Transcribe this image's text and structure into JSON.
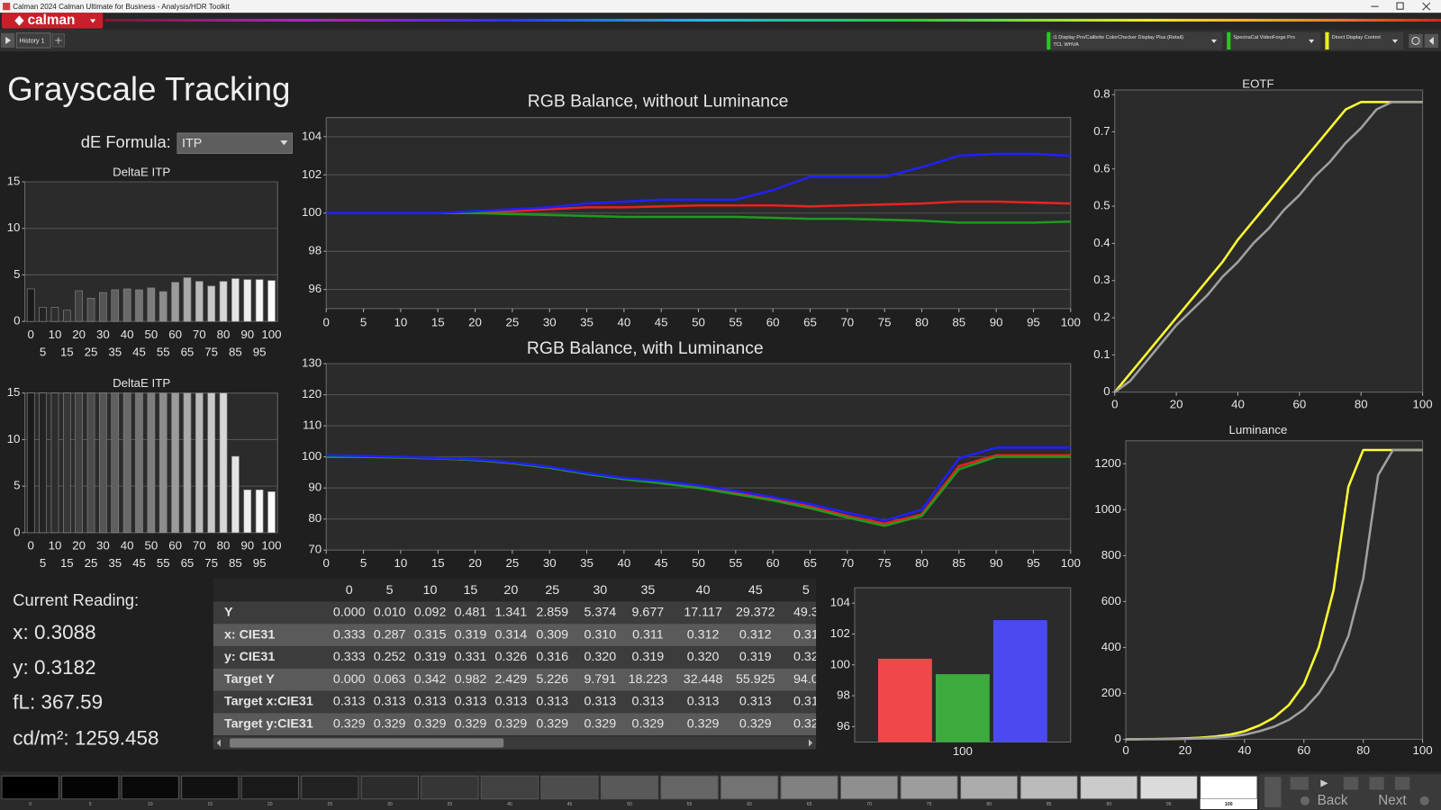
{
  "window_title": "Calman 2024 Calman Ultimate for Business - Analysis/HDR Toolkit",
  "logo": "calman",
  "tab": "History 1",
  "devices": [
    {
      "name": "i1 Display Pro/Calibrite ColorChecker Display Plus (Retail)",
      "detail": "TCL WHVA"
    },
    {
      "name": "SpectraCal VideoForge Pro"
    },
    {
      "name": "Direct Display Control"
    }
  ],
  "page_title": "Grayscale Tracking",
  "de_formula": {
    "label": "dE Formula:",
    "value": "ITP"
  },
  "current_reading": {
    "title": "Current Reading:",
    "lines": [
      "x: 0.3088",
      "y: 0.3182",
      "fL: 367.59",
      "cd/m²: 1259.458"
    ]
  },
  "table": {
    "header": [
      "0",
      "5",
      "10",
      "15",
      "20",
      "25",
      "30",
      "35",
      "40",
      "45",
      "5"
    ],
    "rows": [
      [
        "Y",
        "0.000",
        "0.010",
        "0.092",
        "0.481",
        "1.341",
        "2.859",
        "5.374",
        "9.677",
        "17.117",
        "29.372",
        "49.3"
      ],
      [
        "x: CIE31",
        "0.333",
        "0.287",
        "0.315",
        "0.319",
        "0.314",
        "0.309",
        "0.310",
        "0.311",
        "0.312",
        "0.312",
        "0.31"
      ],
      [
        "y: CIE31",
        "0.333",
        "0.252",
        "0.319",
        "0.331",
        "0.326",
        "0.316",
        "0.320",
        "0.319",
        "0.320",
        "0.319",
        "0.32"
      ],
      [
        "Target Y",
        "0.000",
        "0.063",
        "0.342",
        "0.982",
        "2.429",
        "5.226",
        "9.791",
        "18.223",
        "32.448",
        "55.925",
        "94.0"
      ],
      [
        "Target x:CIE31",
        "0.313",
        "0.313",
        "0.313",
        "0.313",
        "0.313",
        "0.313",
        "0.313",
        "0.313",
        "0.313",
        "0.313",
        "0.31"
      ],
      [
        "Target y:CIE31",
        "0.329",
        "0.329",
        "0.329",
        "0.329",
        "0.329",
        "0.329",
        "0.329",
        "0.329",
        "0.329",
        "0.329",
        "0.32"
      ]
    ]
  },
  "swatches": [
    "0",
    "5",
    "10",
    "15",
    "20",
    "25",
    "30",
    "35",
    "40",
    "45",
    "50",
    "55",
    "60",
    "65",
    "70",
    "75",
    "80",
    "85",
    "90",
    "95",
    "100"
  ],
  "nav": {
    "back": "Back",
    "next": "Next"
  },
  "chart_data": [
    {
      "type": "bar",
      "title": "DeltaE ITP",
      "categories": [
        "0",
        "5",
        "10",
        "15",
        "20",
        "25",
        "30",
        "35",
        "40",
        "45",
        "50",
        "55",
        "60",
        "65",
        "70",
        "75",
        "80",
        "85",
        "90",
        "95",
        "100"
      ],
      "values": [
        3.5,
        1.5,
        1.5,
        1.2,
        3.3,
        2.5,
        3.1,
        3.4,
        3.5,
        3.4,
        3.6,
        3.2,
        4.2,
        4.7,
        4.3,
        3.8,
        4.3,
        4.6,
        4.5,
        4.5,
        4.4
      ],
      "colors": [
        "#1a1a1a",
        "#232323",
        "#2d2d2d",
        "#373737",
        "#414141",
        "#4b4b4b",
        "#555555",
        "#5f5f5f",
        "#696969",
        "#737373",
        "#7d7d7d",
        "#8c8c8c",
        "#9b9b9b",
        "#aaaaaa",
        "#b9b9b9",
        "#c8c8c8",
        "#d7d7d7",
        "#e4e4e4",
        "#eeeeee",
        "#f6f6f6",
        "#fcfcfc"
      ],
      "ylim": [
        0,
        15
      ],
      "yticks": [
        0,
        5,
        10,
        15
      ],
      "grid": true
    },
    {
      "type": "bar",
      "title": "DeltaE ITP",
      "categories": [
        "0",
        "5",
        "10",
        "15",
        "20",
        "25",
        "30",
        "35",
        "40",
        "45",
        "50",
        "55",
        "60",
        "65",
        "70",
        "75",
        "80",
        "85",
        "90",
        "95",
        "100"
      ],
      "values": [
        15,
        15,
        15,
        15,
        15,
        15,
        15,
        15,
        15,
        15,
        15,
        15,
        15,
        15,
        15,
        15,
        15,
        8.2,
        4.6,
        4.6,
        4.4
      ],
      "colors": [
        "#1a1a1a",
        "#232323",
        "#2d2d2d",
        "#373737",
        "#414141",
        "#4b4b4b",
        "#555555",
        "#5f5f5f",
        "#696969",
        "#737373",
        "#7d7d7d",
        "#8c8c8c",
        "#9b9b9b",
        "#aaaaaa",
        "#b9b9b9",
        "#c8c8c8",
        "#d7d7d7",
        "#e4e4e4",
        "#eeeeee",
        "#f6f6f6",
        "#fcfcfc"
      ],
      "ylim": [
        0,
        15
      ],
      "yticks": [
        0,
        5,
        10,
        15
      ],
      "grid": true
    },
    {
      "type": "line",
      "title": "RGB Balance, without Luminance",
      "x": [
        0,
        5,
        10,
        15,
        20,
        25,
        30,
        35,
        40,
        45,
        50,
        55,
        60,
        65,
        70,
        75,
        80,
        85,
        90,
        95,
        100
      ],
      "xlim": [
        0,
        100
      ],
      "xticks": [
        0,
        5,
        10,
        15,
        20,
        25,
        30,
        35,
        40,
        45,
        50,
        55,
        60,
        65,
        70,
        75,
        80,
        85,
        90,
        95,
        100
      ],
      "ylim": [
        95,
        105
      ],
      "yticks": [
        96,
        98,
        100,
        102,
        104
      ],
      "grid": true,
      "series": [
        {
          "color": "#e82222",
          "values": [
            100,
            100,
            100,
            100,
            100,
            100.1,
            100.2,
            100.3,
            100.3,
            100.35,
            100.4,
            100.4,
            100.4,
            100.35,
            100.4,
            100.45,
            100.5,
            100.6,
            100.6,
            100.55,
            100.5
          ]
        },
        {
          "color": "#1e9a1e",
          "values": [
            100,
            100,
            100,
            100,
            100,
            99.95,
            99.9,
            99.85,
            99.8,
            99.8,
            99.8,
            99.8,
            99.75,
            99.7,
            99.7,
            99.65,
            99.6,
            99.5,
            99.5,
            99.5,
            99.55
          ]
        },
        {
          "color": "#2020ff",
          "values": [
            100,
            100,
            100,
            100,
            100.1,
            100.2,
            100.3,
            100.5,
            100.6,
            100.7,
            100.7,
            100.7,
            101.2,
            101.9,
            101.9,
            101.9,
            102.4,
            103,
            103.1,
            103.1,
            103
          ]
        }
      ]
    },
    {
      "type": "line",
      "title": "RGB Balance, with Luminance",
      "x": [
        0,
        5,
        10,
        15,
        20,
        25,
        30,
        35,
        40,
        45,
        50,
        55,
        60,
        65,
        70,
        75,
        80,
        85,
        90,
        95,
        100
      ],
      "xlim": [
        0,
        100
      ],
      "xticks": [
        0,
        5,
        10,
        15,
        20,
        25,
        30,
        35,
        40,
        45,
        50,
        55,
        60,
        65,
        70,
        75,
        80,
        85,
        90,
        95,
        100
      ],
      "ylim": [
        70,
        130
      ],
      "yticks": [
        70,
        80,
        90,
        100,
        110,
        120,
        130
      ],
      "grid": true,
      "series": [
        {
          "color": "#e82222",
          "values": [
            100,
            100,
            99.8,
            99.5,
            99,
            98,
            96.5,
            94.5,
            93,
            92,
            90.5,
            88.5,
            86.5,
            84,
            81,
            78.5,
            81.5,
            97,
            100.5,
            100.5,
            100.5
          ]
        },
        {
          "color": "#1e9a1e",
          "values": [
            100,
            100,
            99.8,
            99.5,
            99,
            98,
            96.5,
            94.5,
            92.8,
            91.5,
            90,
            88,
            86,
            83.5,
            80.5,
            77.8,
            81,
            96,
            100,
            100,
            100
          ]
        },
        {
          "color": "#2020ff",
          "values": [
            100.5,
            100.3,
            100,
            99.6,
            99.2,
            98.2,
            96.8,
            94.8,
            93.2,
            92.2,
            90.8,
            89,
            87,
            84.8,
            82,
            79.5,
            83,
            99.5,
            103,
            103,
            103
          ]
        }
      ]
    },
    {
      "type": "bar",
      "categories": [
        "100"
      ],
      "ylim": [
        95,
        105
      ],
      "yticks": [
        96,
        98,
        100,
        102,
        104
      ],
      "grid": false,
      "series": [
        {
          "color": "#f04848",
          "values": [
            100.4
          ]
        },
        {
          "color": "#3caa3c",
          "values": [
            99.4
          ]
        },
        {
          "color": "#4a4af0",
          "values": [
            102.9
          ]
        }
      ]
    },
    {
      "type": "line",
      "title": "EOTF",
      "x": [
        0,
        5,
        10,
        15,
        20,
        25,
        30,
        35,
        40,
        45,
        50,
        55,
        60,
        65,
        70,
        75,
        80,
        85,
        90,
        95,
        100
      ],
      "xlim": [
        0,
        100
      ],
      "xticks": [
        0,
        20,
        40,
        60,
        80,
        100
      ],
      "ylim": [
        0,
        0.8
      ],
      "yticks": [
        0,
        0.1,
        0.2,
        0.3,
        0.4,
        0.5,
        0.6,
        0.7,
        0.8
      ],
      "grid": false,
      "series": [
        {
          "color": "#ffff33",
          "values": [
            0,
            0.05,
            0.1,
            0.15,
            0.2,
            0.25,
            0.3,
            0.35,
            0.41,
            0.46,
            0.51,
            0.56,
            0.61,
            0.66,
            0.71,
            0.76,
            0.78,
            0.78,
            0.78,
            0.78,
            0.78
          ]
        },
        {
          "color": "#a0a0a0",
          "values": [
            0,
            0.03,
            0.08,
            0.13,
            0.18,
            0.22,
            0.26,
            0.31,
            0.35,
            0.4,
            0.44,
            0.49,
            0.53,
            0.58,
            0.62,
            0.67,
            0.71,
            0.76,
            0.78,
            0.78,
            0.78
          ]
        }
      ]
    },
    {
      "type": "line",
      "title": "Luminance",
      "x": [
        0,
        5,
        10,
        15,
        20,
        25,
        30,
        35,
        40,
        45,
        50,
        55,
        60,
        65,
        70,
        75,
        80,
        85,
        90,
        95,
        100
      ],
      "xlim": [
        0,
        100
      ],
      "xticks": [
        0,
        20,
        40,
        60,
        80,
        100
      ],
      "ylim": [
        0,
        1300
      ],
      "yticks": [
        0,
        200,
        400,
        600,
        800,
        1000,
        1200
      ],
      "grid": false,
      "series": [
        {
          "color": "#ffff33",
          "values": [
            0,
            0.5,
            1,
            2,
            4,
            7,
            12,
            20,
            35,
            60,
            95,
            150,
            240,
            400,
            650,
            1100,
            1260,
            1260,
            1260,
            1260,
            1260
          ]
        },
        {
          "color": "#a0a0a0",
          "values": [
            0,
            0,
            0.5,
            1,
            2,
            4,
            7,
            12,
            20,
            35,
            55,
            85,
            130,
            200,
            300,
            450,
            700,
            1150,
            1260,
            1260,
            1260
          ]
        }
      ]
    }
  ]
}
